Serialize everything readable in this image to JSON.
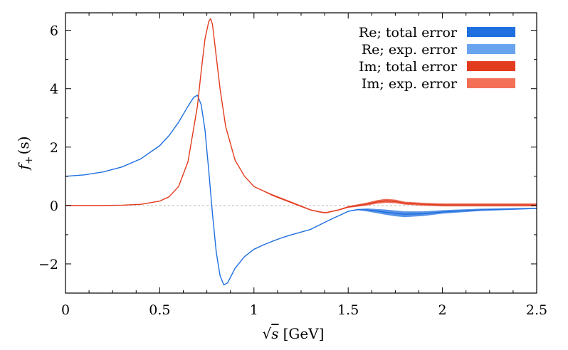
{
  "chart_data": {
    "type": "line",
    "xlabel": {
      "sqrt": "√",
      "var": "s",
      "unit": "[GeV]"
    },
    "ylabel": {
      "f": "f",
      "sub": "+",
      "arg": "(s)"
    },
    "xlim": [
      0,
      2.5
    ],
    "ylim": [
      -3,
      6.6
    ],
    "x_ticks": [
      0,
      0.5,
      1,
      1.5,
      2,
      2.5
    ],
    "x_tick_labels": [
      "0",
      "0.5",
      "1",
      "1.5",
      "2",
      "2.5"
    ],
    "y_ticks": [
      -2,
      0,
      2,
      4,
      6
    ],
    "y_tick_labels": [
      "−2",
      "0",
      "2",
      "4",
      "6"
    ],
    "grid": false,
    "zero_line": true,
    "legend_position": "top-right",
    "legend": [
      {
        "label": "Re; total error",
        "color": "#1f6fdf"
      },
      {
        "label": "Re; exp. error",
        "color": "#6aa4ee"
      },
      {
        "label": "Im; total error",
        "color": "#e33b1e"
      },
      {
        "label": "Im; exp. error",
        "color": "#f36f55"
      }
    ],
    "series": [
      {
        "part": "Re",
        "color": "#1f6fdf",
        "x": [
          0,
          0.1,
          0.2,
          0.3,
          0.4,
          0.5,
          0.55,
          0.6,
          0.65,
          0.68,
          0.7,
          0.72,
          0.74,
          0.76,
          0.78,
          0.8,
          0.82,
          0.84,
          0.86,
          0.88,
          0.9,
          0.95,
          1.0,
          1.05,
          1.1,
          1.15,
          1.2,
          1.3,
          1.4,
          1.5,
          1.55,
          1.6,
          1.7,
          1.75,
          1.8,
          1.9,
          2.0,
          2.2,
          2.5
        ],
        "y": [
          1.0,
          1.05,
          1.15,
          1.32,
          1.6,
          2.05,
          2.4,
          2.85,
          3.4,
          3.7,
          3.78,
          3.45,
          2.6,
          1.2,
          -0.3,
          -1.6,
          -2.4,
          -2.72,
          -2.65,
          -2.4,
          -2.15,
          -1.75,
          -1.5,
          -1.35,
          -1.22,
          -1.1,
          -1.0,
          -0.82,
          -0.5,
          -0.2,
          -0.14,
          -0.15,
          -0.23,
          -0.27,
          -0.3,
          -0.28,
          -0.22,
          -0.15,
          -0.1
        ],
        "band": [
          0,
          0,
          0,
          0,
          0,
          0,
          0,
          0,
          0,
          0,
          0,
          0,
          0,
          0,
          0,
          0,
          0,
          0,
          0,
          0,
          0,
          0,
          0,
          0,
          0,
          0,
          0,
          0,
          0.01,
          0.015,
          0.02,
          0.05,
          0.09,
          0.1,
          0.1,
          0.08,
          0.06,
          0.04,
          0.02
        ]
      },
      {
        "part": "Im",
        "color": "#e33b1e",
        "x": [
          0,
          0.2,
          0.3,
          0.4,
          0.5,
          0.55,
          0.6,
          0.65,
          0.7,
          0.72,
          0.74,
          0.76,
          0.77,
          0.78,
          0.8,
          0.82,
          0.85,
          0.9,
          0.95,
          1.0,
          1.1,
          1.2,
          1.3,
          1.35,
          1.38,
          1.45,
          1.5,
          1.6,
          1.65,
          1.7,
          1.75,
          1.8,
          1.9,
          2.0,
          2.2,
          2.5
        ],
        "y": [
          0,
          0,
          0.01,
          0.04,
          0.15,
          0.3,
          0.65,
          1.5,
          3.4,
          4.6,
          5.7,
          6.3,
          6.4,
          6.2,
          5.1,
          4.0,
          2.7,
          1.55,
          1.0,
          0.65,
          0.35,
          0.1,
          -0.15,
          -0.22,
          -0.25,
          -0.15,
          -0.05,
          0.05,
          0.12,
          0.16,
          0.14,
          0.08,
          0.04,
          0.02,
          0.02,
          0.02
        ],
        "band": [
          0,
          0,
          0,
          0,
          0,
          0,
          0,
          0,
          0,
          0,
          0,
          0,
          0,
          0,
          0,
          0,
          0,
          0,
          0,
          0,
          0.03,
          0.03,
          0.02,
          0.02,
          0.02,
          0.02,
          0.03,
          0.05,
          0.06,
          0.07,
          0.06,
          0.05,
          0.05,
          0.05,
          0.05,
          0.05
        ]
      }
    ]
  }
}
